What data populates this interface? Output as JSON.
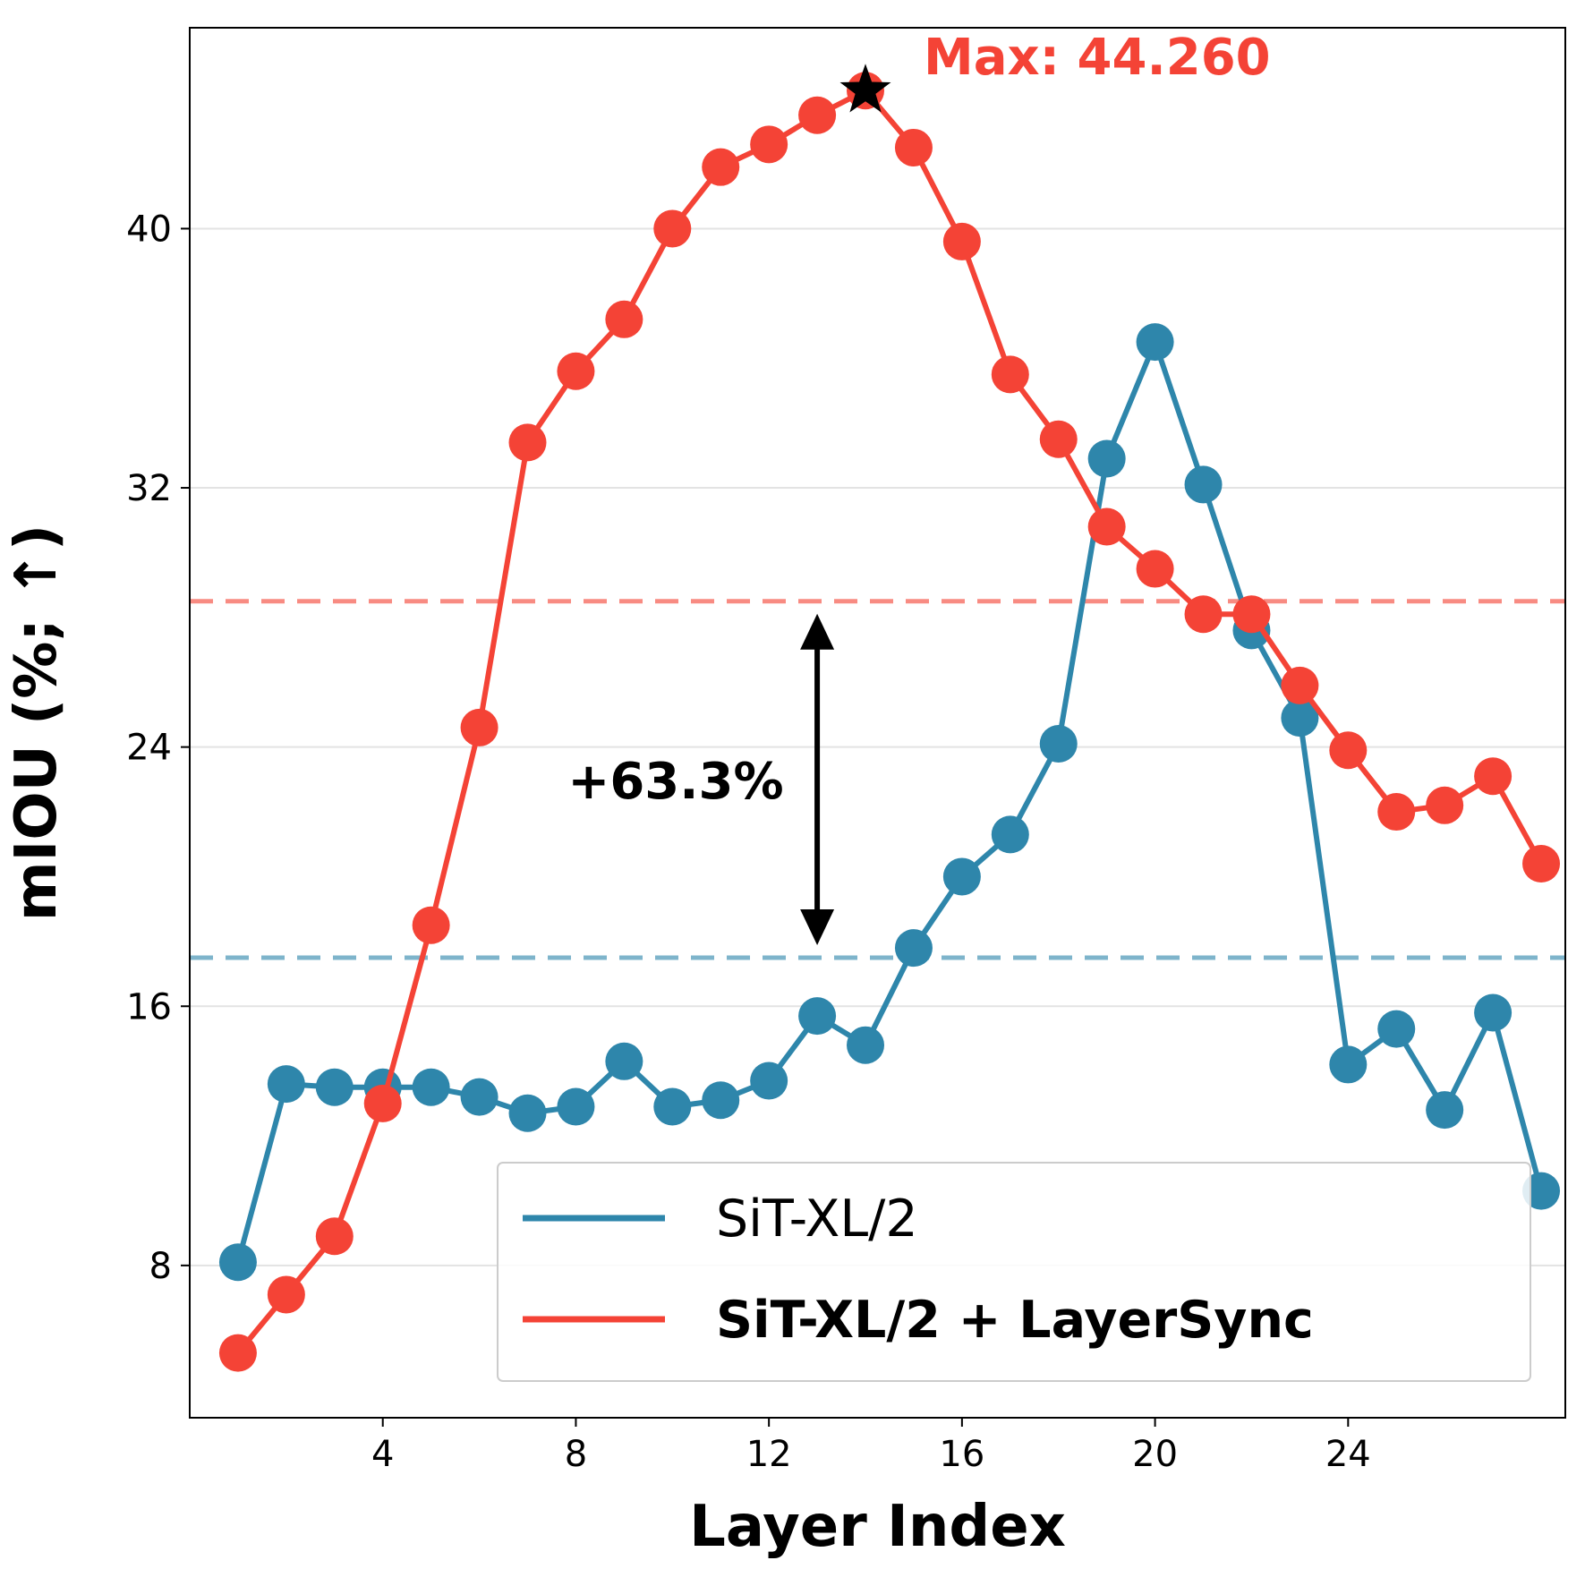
{
  "chart_data": {
    "type": "line",
    "xlabel": "Layer Index",
    "ylabel": "mIOU (%; ↑)",
    "x_ticks": [
      4,
      8,
      12,
      16,
      20,
      24
    ],
    "y_ticks": [
      8,
      16,
      24,
      32,
      40
    ],
    "xlim": [
      0.0,
      28.5
    ],
    "ylim": [
      3.3,
      46.2
    ],
    "grid": "horizontal",
    "legend_position": "bottom-right",
    "x": [
      1,
      2,
      3,
      4,
      5,
      6,
      7,
      8,
      9,
      10,
      11,
      12,
      13,
      14,
      15,
      16,
      17,
      18,
      19,
      20,
      21,
      22,
      23,
      24,
      25,
      26,
      27,
      28
    ],
    "series": [
      {
        "name": "SiT-XL/2",
        "color": "#2e86ab",
        "bold": false,
        "values": [
          8.1,
          13.6,
          13.5,
          13.5,
          13.5,
          13.2,
          12.7,
          12.9,
          14.3,
          12.9,
          13.1,
          13.7,
          15.7,
          14.8,
          17.8,
          20.0,
          21.3,
          24.1,
          32.9,
          36.5,
          32.1,
          27.6,
          24.9,
          14.2,
          15.3,
          12.8,
          15.8,
          10.3
        ],
        "reference_line": 17.5
      },
      {
        "name": "SiT-XL/2 + LayerSync",
        "color": "#f44336",
        "bold": true,
        "values": [
          5.3,
          7.1,
          8.9,
          13.0,
          18.5,
          24.6,
          33.4,
          35.6,
          37.2,
          40.0,
          41.9,
          42.6,
          43.5,
          44.26,
          42.5,
          39.6,
          35.5,
          33.5,
          30.8,
          29.5,
          28.1,
          28.1,
          25.9,
          23.9,
          22.0,
          22.2,
          23.1,
          20.4
        ],
        "reference_line": 28.5
      }
    ],
    "annotations": [
      {
        "text": "Max: 44.260",
        "x": 14,
        "y": 44.26,
        "color": "#f44336",
        "marker": "star"
      },
      {
        "text": "+63.3%",
        "arrow_x": 13,
        "arrow_from": 17.5,
        "arrow_to": 28.5
      }
    ]
  }
}
